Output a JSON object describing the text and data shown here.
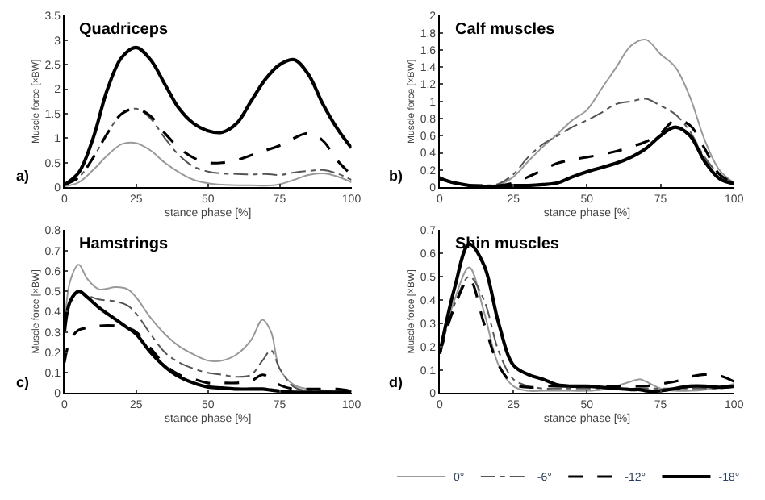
{
  "chart_data": [
    {
      "type": "line",
      "title": "Quadriceps",
      "xlabel": "stance phase [%]",
      "ylabel": "Muscle force [×BW]",
      "annotations": [
        "a)"
      ],
      "xlim": [
        0,
        100
      ],
      "xticks": [
        0,
        25,
        50,
        75,
        100
      ],
      "ylim": [
        0,
        3.5
      ],
      "yticks": [
        0,
        0.5,
        1,
        1.5,
        2,
        2.5,
        3,
        3.5
      ],
      "legend": "bottom right",
      "x": [
        0,
        5,
        10,
        15,
        20,
        25,
        30,
        35,
        40,
        45,
        50,
        55,
        60,
        65,
        70,
        75,
        80,
        85,
        90,
        95,
        100
      ],
      "series": [
        {
          "name": "0°",
          "color": "#999999",
          "line_style": "solid",
          "values": [
            0.02,
            0.1,
            0.35,
            0.65,
            0.88,
            0.9,
            0.75,
            0.5,
            0.3,
            0.15,
            0.08,
            0.05,
            0.04,
            0.04,
            0.03,
            0.06,
            0.15,
            0.25,
            0.28,
            0.22,
            0.1
          ]
        },
        {
          "name": "-6°",
          "color": "#555555",
          "line_style": "dotted",
          "values": [
            0.05,
            0.2,
            0.6,
            1.1,
            1.5,
            1.6,
            1.4,
            1.0,
            0.65,
            0.42,
            0.32,
            0.28,
            0.27,
            0.26,
            0.27,
            0.25,
            0.3,
            0.33,
            0.35,
            0.28,
            0.15
          ]
        },
        {
          "name": "-12°",
          "color": "#000000",
          "line_style": "dashed",
          "values": [
            0.05,
            0.2,
            0.6,
            1.1,
            1.5,
            1.6,
            1.45,
            1.1,
            0.8,
            0.6,
            0.5,
            0.5,
            0.55,
            0.65,
            0.75,
            0.85,
            1.0,
            1.1,
            0.95,
            0.55,
            0.25
          ]
        },
        {
          "name": "-18°",
          "color": "#000000",
          "line_style": "solid",
          "values": [
            0.05,
            0.3,
            1.0,
            2.0,
            2.65,
            2.85,
            2.6,
            2.1,
            1.6,
            1.3,
            1.15,
            1.12,
            1.3,
            1.75,
            2.2,
            2.5,
            2.6,
            2.3,
            1.7,
            1.2,
            0.8
          ]
        }
      ]
    },
    {
      "type": "line",
      "title": "Calf muscles",
      "xlabel": "stance phase [%]",
      "ylabel": "Muscle force [×BW]",
      "annotations": [
        "b)"
      ],
      "xlim": [
        0,
        100
      ],
      "xticks": [
        0,
        25,
        50,
        75,
        100
      ],
      "ylim": [
        0,
        2
      ],
      "yticks": [
        0,
        0.2,
        0.4,
        0.6,
        0.8,
        1,
        1.2,
        1.4,
        1.6,
        1.8,
        2
      ],
      "legend": "bottom right",
      "x": [
        0,
        5,
        10,
        15,
        20,
        25,
        30,
        35,
        40,
        45,
        50,
        55,
        60,
        65,
        70,
        75,
        80,
        85,
        90,
        95,
        100
      ],
      "series": [
        {
          "name": "0°",
          "color": "#999999",
          "line_style": "solid",
          "values": [
            0.12,
            0.05,
            0.02,
            0.02,
            0.03,
            0.12,
            0.3,
            0.47,
            0.62,
            0.78,
            0.9,
            1.15,
            1.4,
            1.65,
            1.72,
            1.55,
            1.4,
            1.05,
            0.55,
            0.2,
            0.05
          ]
        },
        {
          "name": "-6°",
          "color": "#555555",
          "line_style": "dotted",
          "values": [
            0.12,
            0.05,
            0.02,
            0.02,
            0.04,
            0.15,
            0.35,
            0.5,
            0.6,
            0.7,
            0.78,
            0.87,
            0.97,
            1.0,
            1.03,
            0.95,
            0.85,
            0.65,
            0.35,
            0.15,
            0.05
          ]
        },
        {
          "name": "-12°",
          "color": "#000000",
          "line_style": "dashed",
          "values": [
            0.1,
            0.05,
            0.02,
            0.02,
            0.02,
            0.05,
            0.12,
            0.2,
            0.28,
            0.32,
            0.35,
            0.38,
            0.42,
            0.47,
            0.53,
            0.63,
            0.78,
            0.72,
            0.45,
            0.15,
            0.05
          ]
        },
        {
          "name": "-18°",
          "color": "#000000",
          "line_style": "solid",
          "values": [
            0.1,
            0.05,
            0.02,
            0.01,
            0.01,
            0.02,
            0.02,
            0.03,
            0.05,
            0.12,
            0.18,
            0.23,
            0.28,
            0.35,
            0.45,
            0.6,
            0.7,
            0.6,
            0.3,
            0.1,
            0.04
          ]
        }
      ]
    },
    {
      "type": "line",
      "title": "Hamstrings",
      "xlabel": "stance phase [%]",
      "ylabel": "Muscle force [×BW]",
      "annotations": [
        "c)"
      ],
      "xlim": [
        0,
        100
      ],
      "xticks": [
        0,
        25,
        50,
        75,
        100
      ],
      "ylim": [
        0,
        0.8
      ],
      "yticks": [
        0,
        0.1,
        0.2,
        0.3,
        0.4,
        0.5,
        0.6,
        0.7,
        0.8
      ],
      "legend": "bottom right",
      "x": [
        0,
        2,
        5,
        8,
        12,
        18,
        22,
        25,
        30,
        35,
        40,
        45,
        50,
        55,
        60,
        65,
        69,
        72,
        75,
        80,
        85,
        90,
        95,
        100
      ],
      "series": [
        {
          "name": "0°",
          "color": "#999999",
          "line_style": "solid",
          "values": [
            0.3,
            0.55,
            0.63,
            0.56,
            0.51,
            0.52,
            0.51,
            0.47,
            0.37,
            0.29,
            0.23,
            0.19,
            0.16,
            0.16,
            0.19,
            0.26,
            0.36,
            0.3,
            0.12,
            0.04,
            0.02,
            0.015,
            0.01,
            0.01
          ]
        },
        {
          "name": "-6°",
          "color": "#555555",
          "line_style": "dotted",
          "values": [
            0.3,
            0.45,
            0.5,
            0.48,
            0.46,
            0.45,
            0.43,
            0.39,
            0.29,
            0.2,
            0.15,
            0.12,
            0.1,
            0.09,
            0.08,
            0.09,
            0.16,
            0.21,
            0.12,
            0.03,
            0.01,
            0.01,
            0.01,
            0.01
          ]
        },
        {
          "name": "-12°",
          "color": "#000000",
          "line_style": "dashed",
          "values": [
            0.15,
            0.26,
            0.31,
            0.32,
            0.33,
            0.33,
            0.32,
            0.3,
            0.22,
            0.14,
            0.09,
            0.07,
            0.05,
            0.05,
            0.05,
            0.06,
            0.09,
            0.07,
            0.04,
            0.02,
            0.02,
            0.02,
            0.02,
            0.01
          ]
        },
        {
          "name": "-18°",
          "color": "#000000",
          "line_style": "solid",
          "values": [
            0.3,
            0.45,
            0.5,
            0.47,
            0.42,
            0.36,
            0.32,
            0.29,
            0.2,
            0.13,
            0.08,
            0.05,
            0.03,
            0.025,
            0.02,
            0.02,
            0.02,
            0.015,
            0.01,
            0.005,
            0.005,
            0.005,
            0.005,
            0.005
          ]
        }
      ]
    },
    {
      "type": "line",
      "title": "Shin muscles",
      "xlabel": "stance phase [%]",
      "ylabel": "Muscle force [×BW]",
      "annotations": [
        "d)"
      ],
      "xlim": [
        0,
        100
      ],
      "xticks": [
        0,
        25,
        50,
        75,
        100
      ],
      "ylim": [
        0,
        0.7
      ],
      "yticks": [
        0,
        0.1,
        0.2,
        0.3,
        0.4,
        0.5,
        0.6,
        0.7
      ],
      "legend": "bottom right",
      "x": [
        0,
        5,
        10,
        15,
        20,
        25,
        30,
        35,
        40,
        45,
        50,
        55,
        60,
        65,
        68,
        70,
        75,
        80,
        85,
        90,
        95,
        100
      ],
      "series": [
        {
          "name": "0°",
          "color": "#999999",
          "line_style": "solid",
          "values": [
            0.17,
            0.4,
            0.54,
            0.35,
            0.12,
            0.03,
            0.01,
            0.01,
            0.01,
            0.01,
            0.01,
            0.015,
            0.03,
            0.05,
            0.06,
            0.05,
            0.02,
            0.01,
            0.01,
            0.015,
            0.025,
            0.04
          ]
        },
        {
          "name": "-6°",
          "color": "#555555",
          "line_style": "dotted",
          "values": [
            0.17,
            0.38,
            0.5,
            0.4,
            0.18,
            0.06,
            0.03,
            0.02,
            0.02,
            0.02,
            0.02,
            0.02,
            0.02,
            0.02,
            0.02,
            0.02,
            0.02,
            0.02,
            0.02,
            0.02,
            0.02,
            0.03
          ]
        },
        {
          "name": "-12°",
          "color": "#000000",
          "line_style": "dashed",
          "values": [
            0.17,
            0.37,
            0.49,
            0.3,
            0.12,
            0.04,
            0.025,
            0.03,
            0.03,
            0.03,
            0.03,
            0.03,
            0.03,
            0.03,
            0.03,
            0.03,
            0.04,
            0.05,
            0.07,
            0.08,
            0.075,
            0.05
          ]
        },
        {
          "name": "-18°",
          "color": "#000000",
          "line_style": "solid",
          "values": [
            0.17,
            0.45,
            0.64,
            0.55,
            0.3,
            0.12,
            0.08,
            0.06,
            0.035,
            0.03,
            0.03,
            0.025,
            0.02,
            0.015,
            0.015,
            0.01,
            0.01,
            0.02,
            0.03,
            0.03,
            0.025,
            0.03
          ]
        }
      ]
    }
  ]
}
